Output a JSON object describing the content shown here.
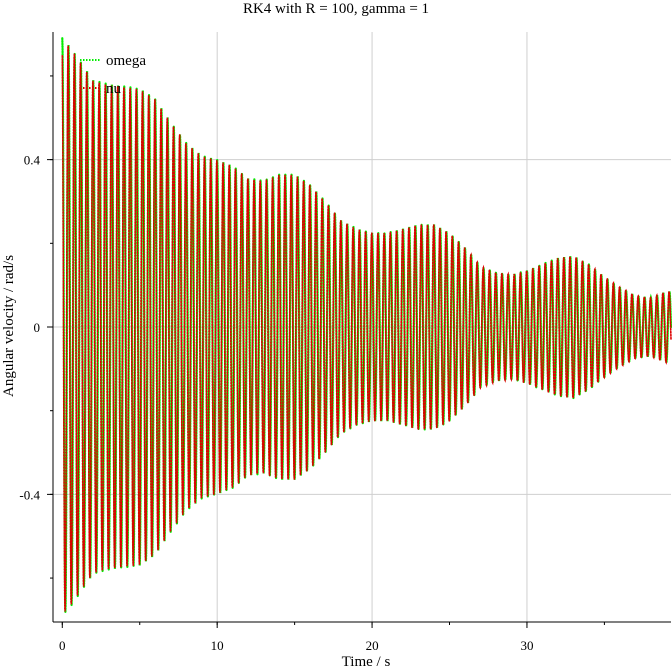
{
  "chart_data": {
    "type": "line",
    "title": "RK4 with R = 100, gamma = 1",
    "xlabel": "Time / s",
    "ylabel": "Angular velocity / rad/s",
    "xlim": [
      -0.6,
      39.3
    ],
    "ylim": [
      -0.705,
      0.705
    ],
    "grid": true,
    "legend_position": "top-left",
    "x_ticks": [
      {
        "value": 0,
        "label": "0"
      },
      {
        "value": 10,
        "label": "10"
      },
      {
        "value": 20,
        "label": "20"
      },
      {
        "value": 30,
        "label": "30"
      }
    ],
    "y_ticks": [
      {
        "value": 0.4,
        "label": "0.4"
      },
      {
        "value": 0,
        "label": "0"
      },
      {
        "value": -0.4,
        "label": "-0.4"
      }
    ],
    "series": [
      {
        "name": "omega",
        "color": "#00ee00",
        "oscillation_period": 0.4,
        "envelope_t": [
          0,
          0.5,
          2,
          3,
          4,
          5,
          6,
          7,
          8,
          9,
          10,
          11,
          12,
          13,
          14,
          15,
          16,
          17,
          18,
          19,
          20,
          21,
          22,
          23,
          24,
          25,
          26,
          27,
          28,
          29,
          30,
          31,
          32,
          33,
          34,
          35,
          36,
          37,
          38,
          39
        ],
        "envelope_amp": [
          0.69,
          0.67,
          0.59,
          0.58,
          0.575,
          0.57,
          0.545,
          0.49,
          0.44,
          0.41,
          0.4,
          0.385,
          0.355,
          0.35,
          0.365,
          0.365,
          0.34,
          0.3,
          0.255,
          0.235,
          0.225,
          0.225,
          0.235,
          0.245,
          0.245,
          0.225,
          0.19,
          0.145,
          0.13,
          0.125,
          0.135,
          0.15,
          0.165,
          0.17,
          0.15,
          0.12,
          0.095,
          0.075,
          0.07,
          0.085
        ]
      },
      {
        "name": "nu",
        "color": "#dd0000",
        "oscillation_period": 0.4,
        "envelope_t": [
          0,
          0.5,
          2,
          3,
          4,
          5,
          6,
          7,
          8,
          9,
          10,
          11,
          12,
          13,
          14,
          15,
          16,
          17,
          18,
          19,
          20,
          21,
          22,
          23,
          24,
          25,
          26,
          27,
          28,
          29,
          30,
          31,
          32,
          33,
          34,
          35,
          36,
          37,
          38,
          39
        ],
        "envelope_amp": [
          0.69,
          0.67,
          0.59,
          0.58,
          0.575,
          0.57,
          0.545,
          0.49,
          0.44,
          0.41,
          0.4,
          0.385,
          0.355,
          0.35,
          0.365,
          0.365,
          0.34,
          0.3,
          0.255,
          0.235,
          0.225,
          0.225,
          0.235,
          0.245,
          0.245,
          0.225,
          0.19,
          0.145,
          0.13,
          0.125,
          0.135,
          0.15,
          0.165,
          0.17,
          0.15,
          0.12,
          0.095,
          0.075,
          0.07,
          0.085
        ]
      }
    ]
  }
}
